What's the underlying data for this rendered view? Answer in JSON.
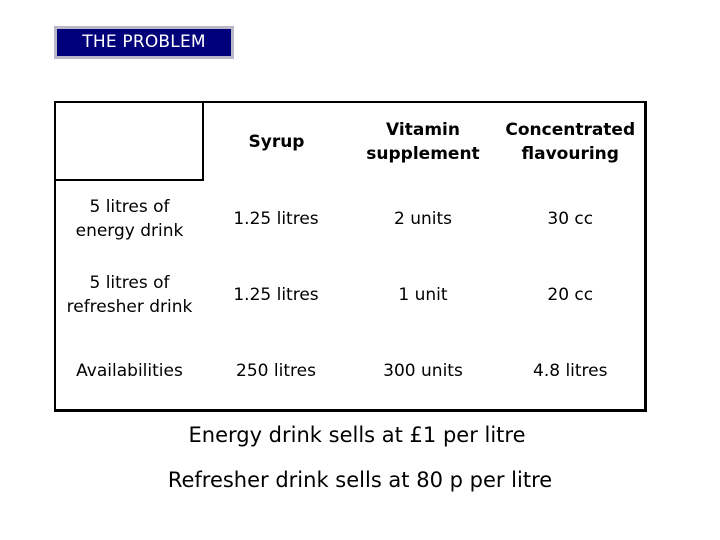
{
  "slide": {
    "title": "THE PROBLEM"
  },
  "table": {
    "headers": [
      "",
      "Syrup",
      "Vitamin supplement",
      "Concentrated flavouring"
    ],
    "rows": [
      {
        "label": "5 litres of energy drink",
        "cells": [
          "1.25 litres",
          "2 units",
          "30 cc"
        ]
      },
      {
        "label": "5 litres of refresher drink",
        "cells": [
          "1.25 litres",
          "1 unit",
          "20 cc"
        ]
      },
      {
        "label": "Availabilities",
        "cells": [
          "250 litres",
          "300 units",
          "4.8 litres"
        ]
      }
    ]
  },
  "notes": [
    "Energy drink sells at £1 per litre",
    "Refresher drink sells at 80 p per litre"
  ],
  "colors": {
    "title_bg": "#00007a",
    "title_border": "#b8b8c8",
    "title_text": "#ffffff"
  }
}
